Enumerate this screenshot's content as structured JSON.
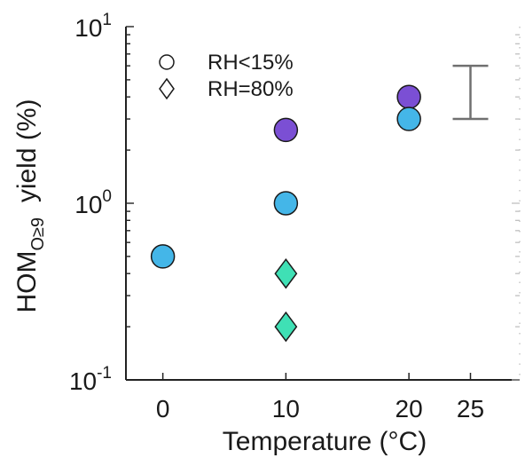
{
  "chart_data": {
    "type": "scatter",
    "xlabel": "Temperature (°C)",
    "ylabel": {
      "main": "HOM",
      "subscript": "O≥9",
      "suffix": "  yield (%)"
    },
    "x_ticks": [
      "0",
      "10",
      "20",
      "25"
    ],
    "x_tick_values": [
      0,
      10,
      20,
      25
    ],
    "xlim": [
      -3,
      29
    ],
    "y_scale": "log",
    "ylim": [
      0.1,
      10
    ],
    "y_ticks": [
      {
        "value": 0.1,
        "base": "10",
        "exp": "-1"
      },
      {
        "value": 1,
        "base": "10",
        "exp": "0"
      },
      {
        "value": 10,
        "base": "10",
        "exp": "1"
      }
    ],
    "grid": false,
    "legend": {
      "placement": "top-left",
      "entries": [
        {
          "marker": "circle",
          "label": "RH<15%"
        },
        {
          "marker": "diamond",
          "label": "RH=80%"
        }
      ]
    },
    "points": [
      {
        "x": 0,
        "y": 0.5,
        "marker": "circle",
        "color": "#44b6e8"
      },
      {
        "x": 10,
        "y": 2.6,
        "marker": "circle",
        "color": "#7b4fd4"
      },
      {
        "x": 10,
        "y": 1.0,
        "marker": "circle",
        "color": "#44b6e8"
      },
      {
        "x": 10,
        "y": 0.4,
        "marker": "diamond",
        "color": "#3fe0b5"
      },
      {
        "x": 10,
        "y": 0.2,
        "marker": "diamond",
        "color": "#3fe0b5"
      },
      {
        "x": 20,
        "y": 4.0,
        "marker": "circle",
        "color": "#7b4fd4"
      },
      {
        "x": 20,
        "y": 3.0,
        "marker": "circle",
        "color": "#44b6e8"
      }
    ],
    "error_bar": {
      "x": 25,
      "y_low": 3.0,
      "y_high": 6.0,
      "color": "#707070"
    }
  }
}
